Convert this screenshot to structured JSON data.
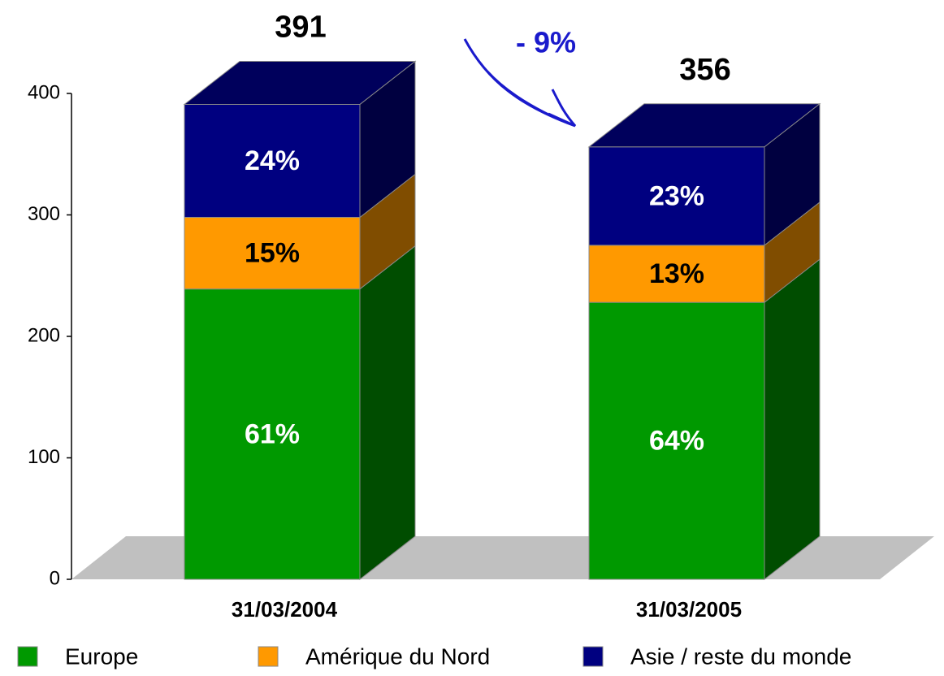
{
  "chart_data": {
    "type": "stacked_bar_3d",
    "categories": [
      "31/03/2004",
      "31/03/2005"
    ],
    "series": [
      {
        "name": "Europe",
        "color": "#009900",
        "values": [
          239,
          228
        ],
        "segment_labels": [
          "61%",
          "64%"
        ]
      },
      {
        "name": "Amérique du Nord",
        "color": "#ff9900",
        "values": [
          59,
          47
        ],
        "segment_labels": [
          "15%",
          "13%"
        ]
      },
      {
        "name": "Asie / reste du monde",
        "color": "#000080",
        "values": [
          93,
          81
        ],
        "segment_labels": [
          "24%",
          "23%"
        ]
      }
    ],
    "totals": [
      391,
      356
    ],
    "annotation": "- 9%",
    "ylim": [
      0,
      400
    ],
    "yticks": [
      0,
      100,
      200,
      300,
      400
    ]
  }
}
